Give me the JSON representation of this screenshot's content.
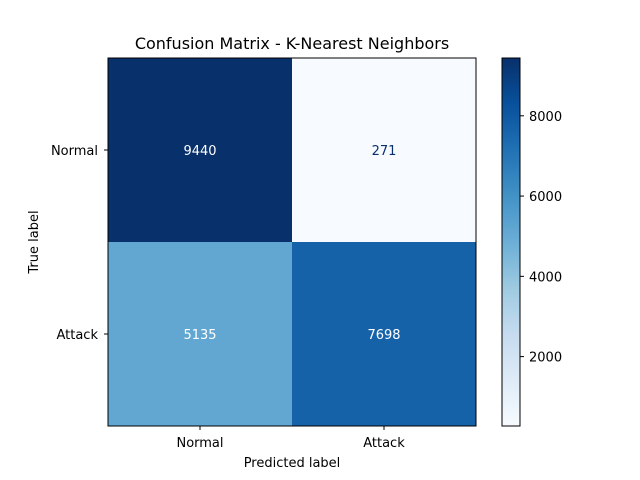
{
  "chart_data": {
    "type": "heatmap",
    "title": "Confusion Matrix - K-Nearest Neighbors",
    "xlabel": "Predicted label",
    "ylabel": "True label",
    "x_categories": [
      "Normal",
      "Attack"
    ],
    "y_categories": [
      "Normal",
      "Attack"
    ],
    "values": [
      [
        9440,
        271
      ],
      [
        5135,
        7698
      ]
    ],
    "colormap": "Blues",
    "colorbar": {
      "range": [
        271,
        9440
      ],
      "ticks": [
        "2000",
        "4000",
        "6000",
        "8000"
      ],
      "tick_values": [
        2000,
        4000,
        6000,
        8000
      ]
    },
    "grid": false
  }
}
